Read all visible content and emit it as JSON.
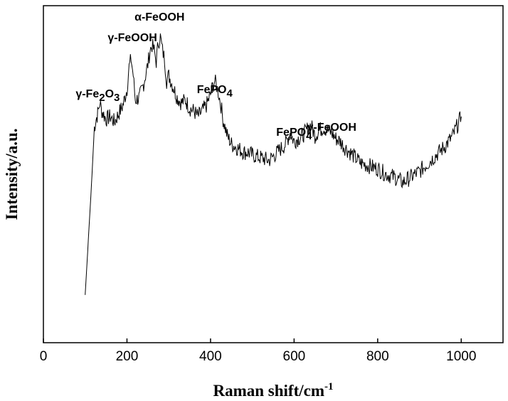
{
  "chart_data": {
    "type": "line",
    "xlabel": "Raman shift/cm",
    "xlabel_superscript": "-1",
    "ylabel": "Intensity/a.u.",
    "xlim": [
      0,
      1100
    ],
    "ylim": [
      0,
      1
    ],
    "xticks": [
      0,
      200,
      400,
      600,
      800,
      1000
    ],
    "yticks_shown": false,
    "grid": false,
    "series": [
      {
        "x": [
          100,
          115,
          122,
          126,
          130,
          135,
          140,
          150,
          160,
          170,
          180,
          190,
          200,
          205,
          210,
          215,
          220,
          230,
          240,
          250,
          255,
          260,
          265,
          270,
          275,
          280,
          285,
          290,
          295,
          300,
          310,
          320,
          330,
          340,
          350,
          360,
          370,
          380,
          390,
          400,
          405,
          410,
          415,
          420,
          425,
          430,
          440,
          450,
          460,
          470,
          480,
          490,
          500,
          520,
          540,
          560,
          580,
          590,
          600,
          610,
          620,
          630,
          640,
          650,
          660,
          670,
          680,
          690,
          700,
          710,
          720,
          740,
          760,
          780,
          800,
          820,
          840,
          860,
          880,
          900,
          920,
          940,
          960,
          980,
          1000
        ],
        "values": [
          0.06,
          0.46,
          0.67,
          0.7,
          0.72,
          0.76,
          0.73,
          0.7,
          0.71,
          0.69,
          0.72,
          0.75,
          0.81,
          0.89,
          0.92,
          0.86,
          0.77,
          0.78,
          0.83,
          0.9,
          0.95,
          0.97,
          0.95,
          0.91,
          0.98,
          1.0,
          0.95,
          0.92,
          0.84,
          0.86,
          0.82,
          0.78,
          0.76,
          0.77,
          0.74,
          0.73,
          0.71,
          0.73,
          0.75,
          0.79,
          0.82,
          0.84,
          0.82,
          0.79,
          0.75,
          0.7,
          0.64,
          0.61,
          0.6,
          0.59,
          0.58,
          0.58,
          0.57,
          0.56,
          0.55,
          0.58,
          0.61,
          0.65,
          0.62,
          0.63,
          0.64,
          0.66,
          0.68,
          0.64,
          0.66,
          0.67,
          0.66,
          0.65,
          0.63,
          0.62,
          0.6,
          0.57,
          0.54,
          0.53,
          0.52,
          0.5,
          0.49,
          0.47,
          0.49,
          0.51,
          0.54,
          0.57,
          0.6,
          0.64,
          0.71
        ]
      }
    ],
    "annotations": [
      {
        "text": "γ-Fe",
        "sub1": "2",
        "mid": "O",
        "sub2": "3",
        "x": 130
      },
      {
        "text": "γ-FeOOH",
        "x": 213
      },
      {
        "text": "α-FeOOH",
        "x": 278
      },
      {
        "text": "FePO",
        "sub1": "4",
        "x": 410
      },
      {
        "text": "FePO",
        "sub1": "4",
        "x": 600
      },
      {
        "text": "γ-FeOOH",
        "x": 690
      }
    ]
  }
}
